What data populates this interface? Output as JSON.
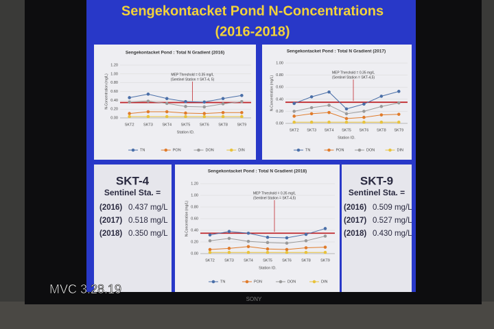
{
  "title": "Sengekontacket Pond N-Concentrations",
  "subtitle": "(2016-2018)",
  "tv_brand": "SONY",
  "watermark": "MVC 3.28.19",
  "panels": [
    {
      "heading": "SKT-4",
      "subheading": "Sentinel Sta. =",
      "rows": [
        {
          "year": "(2016)",
          "value": "0.437 mg/L"
        },
        {
          "year": "(2017)",
          "value": "0.518 mg/L"
        },
        {
          "year": "(2018)",
          "value": "0.350 mg/L"
        }
      ]
    },
    {
      "heading": "SKT-9",
      "subheading": "Sentinel Sta. =",
      "rows": [
        {
          "year": "(2016)",
          "value": "0.509 mg/L"
        },
        {
          "year": "(2017)",
          "value": "0.527 mg/L"
        },
        {
          "year": "(2018)",
          "value": "0.430 mg/L"
        }
      ]
    }
  ],
  "chart_data": [
    {
      "type": "line",
      "title": "Sengekontacket Pond : Total N Gradient (2016)",
      "x_label": "Station ID.",
      "y_label": "N-Concentration (mg/L)",
      "annotation": [
        "MEP Threshold = 0.35 mg/L",
        "(Sentinel Station = SKT-4, 5)"
      ],
      "threshold": 0.35,
      "threshold_color": "#c0282d",
      "categories": [
        "SKT2",
        "SKT3",
        "SKT4",
        "SKT5",
        "SKT6",
        "SKT8",
        "SKT9"
      ],
      "ylim": [
        0,
        1.2
      ],
      "yticks": [
        {
          "value": 0,
          "label": "0.00"
        },
        {
          "value": 0.2,
          "label": "0.20"
        },
        {
          "value": 0.4,
          "label": "0.40"
        },
        {
          "value": 0.6,
          "label": "0.60"
        },
        {
          "value": 0.8,
          "label": "0.80"
        },
        {
          "value": 1.0,
          "label": "1.00"
        },
        {
          "value": 1.2,
          "label": "1.20"
        }
      ],
      "series": [
        {
          "name": "TN",
          "color": "#4a6fa8",
          "values": [
            0.46,
            0.54,
            0.44,
            0.37,
            0.36,
            0.44,
            0.51
          ]
        },
        {
          "name": "PON",
          "color": "#e07b2a",
          "values": [
            0.1,
            0.14,
            0.14,
            0.11,
            0.1,
            0.12,
            0.12
          ]
        },
        {
          "name": "DON",
          "color": "#9a9a9a",
          "values": [
            0.36,
            0.38,
            0.33,
            0.26,
            0.25,
            0.32,
            0.37
          ]
        },
        {
          "name": "DIN",
          "color": "#e8c23a",
          "values": [
            0.03,
            0.03,
            0.03,
            0.03,
            0.03,
            0.03,
            0.03
          ]
        }
      ]
    },
    {
      "type": "line",
      "title": "Sengekontacket Pond : Total N Gradient (2017)",
      "x_label": "Station ID.",
      "y_label": "N-Concentration (mg/L)",
      "annotation": [
        "MEP Threshold = 0.35 mg/L",
        "(Sentinel Station = SKT-4,5)"
      ],
      "threshold": 0.35,
      "threshold_color": "#c0282d",
      "categories": [
        "SKT2",
        "SKT3",
        "SKT4",
        "SKT5",
        "SKT6",
        "SKT8",
        "SKT9"
      ],
      "ylim": [
        0,
        1.0
      ],
      "yticks": [
        {
          "value": 0,
          "label": "0.00"
        },
        {
          "value": 0.2,
          "label": "0.20"
        },
        {
          "value": 0.4,
          "label": "0.40"
        },
        {
          "value": 0.6,
          "label": "0.60"
        },
        {
          "value": 0.8,
          "label": "0.80"
        },
        {
          "value": 1.0,
          "label": "1.00"
        }
      ],
      "series": [
        {
          "name": "TN",
          "color": "#4a6fa8",
          "values": [
            0.33,
            0.44,
            0.52,
            0.24,
            0.32,
            0.45,
            0.53
          ]
        },
        {
          "name": "PON",
          "color": "#e07b2a",
          "values": [
            0.12,
            0.16,
            0.18,
            0.08,
            0.1,
            0.14,
            0.15
          ]
        },
        {
          "name": "DON",
          "color": "#9a9a9a",
          "values": [
            0.2,
            0.26,
            0.3,
            0.16,
            0.2,
            0.28,
            0.34
          ]
        },
        {
          "name": "DIN",
          "color": "#e8c23a",
          "values": [
            0.02,
            0.02,
            0.02,
            0.02,
            0.02,
            0.02,
            0.02
          ]
        }
      ]
    },
    {
      "type": "line",
      "title": "Sengekontacket Pond : Total N Gradient (2018)",
      "x_label": "Station ID.",
      "y_label": "N-Concentration (mg/L)",
      "annotation": [
        "MEP Threshold = 0.35 mg/L",
        "(Sentinel Station = SKT-4,5)"
      ],
      "threshold": 0.35,
      "threshold_color": "#c0282d",
      "categories": [
        "SKT2",
        "SKT3",
        "SKT4",
        "SKT5",
        "SKT6",
        "SKT8",
        "SKT9"
      ],
      "ylim": [
        0,
        1.2
      ],
      "yticks": [
        {
          "value": 0,
          "label": "0.00"
        },
        {
          "value": 0.2,
          "label": "0.20"
        },
        {
          "value": 0.4,
          "label": "0.40"
        },
        {
          "value": 0.6,
          "label": "0.60"
        },
        {
          "value": 0.8,
          "label": "0.80"
        },
        {
          "value": 1.0,
          "label": "1.00"
        },
        {
          "value": 1.2,
          "label": "1.20"
        }
      ],
      "series": [
        {
          "name": "TN",
          "color": "#4a6fa8",
          "values": [
            0.32,
            0.38,
            0.35,
            0.28,
            0.27,
            0.33,
            0.43
          ]
        },
        {
          "name": "PON",
          "color": "#e07b2a",
          "values": [
            0.07,
            0.09,
            0.12,
            0.08,
            0.07,
            0.1,
            0.11
          ]
        },
        {
          "name": "DON",
          "color": "#9a9a9a",
          "values": [
            0.22,
            0.26,
            0.21,
            0.19,
            0.18,
            0.22,
            0.3
          ]
        },
        {
          "name": "DIN",
          "color": "#e8c23a",
          "values": [
            0.02,
            0.02,
            0.02,
            0.02,
            0.02,
            0.02,
            0.02
          ]
        }
      ]
    }
  ]
}
